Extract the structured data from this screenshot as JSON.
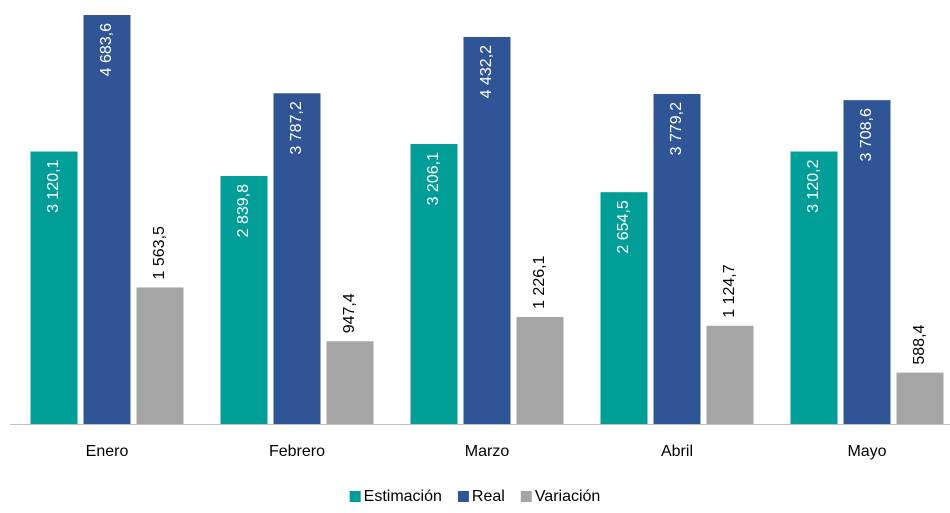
{
  "chart_data": {
    "type": "bar",
    "categories": [
      "Enero",
      "Febrero",
      "Marzo",
      "Abril",
      "Mayo"
    ],
    "series": [
      {
        "name": "Estimación",
        "color": "#009e96",
        "values": [
          3120.1,
          2839.8,
          3206.1,
          2654.5,
          3120.2
        ],
        "value_labels": [
          "3 120,1",
          "2 839,8",
          "3 206,1",
          "2 654,5",
          "3 120,2"
        ]
      },
      {
        "name": "Real",
        "color": "#2f5597",
        "values": [
          4683.6,
          3787.2,
          4432.2,
          3779.2,
          3708.6
        ],
        "value_labels": [
          "4 683,6",
          "3 787,2",
          "4 432,2",
          "3 779,2",
          "3 708,6"
        ]
      },
      {
        "name": "Variación",
        "color": "#a5a5a5",
        "values": [
          1563.5,
          947.4,
          1226.1,
          1124.7,
          588.4
        ],
        "value_labels": [
          "1 563,5",
          "947,4",
          "1 226,1",
          "1 124,7",
          "588,4"
        ]
      }
    ],
    "legend": "bottom"
  }
}
